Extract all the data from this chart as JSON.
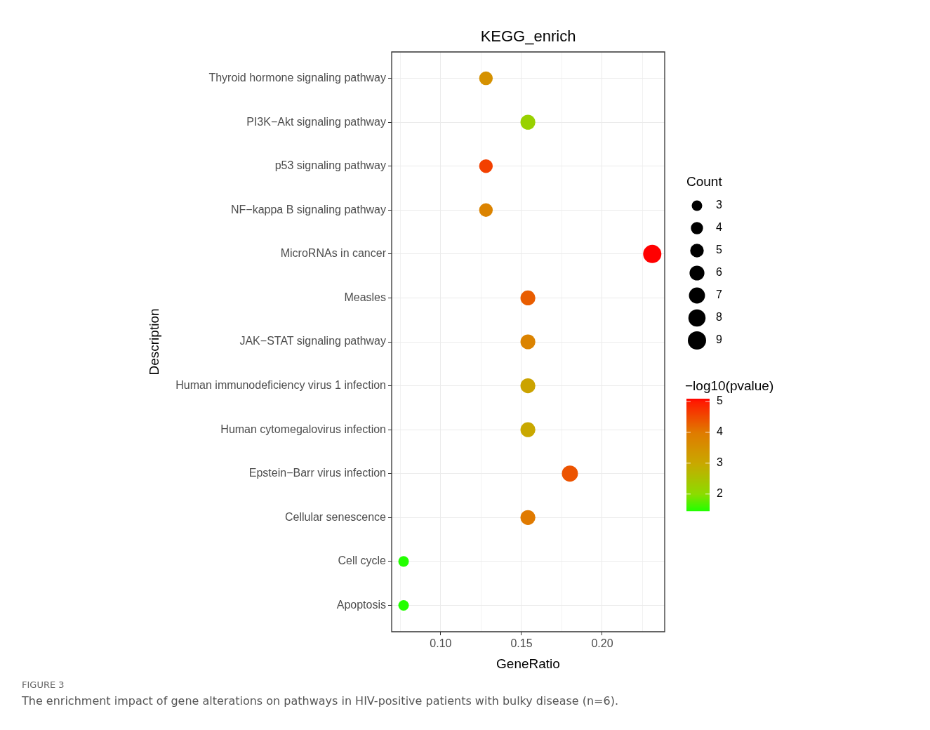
{
  "chart_data": {
    "type": "bubble",
    "title": "KEGG_enrich",
    "xlabel": "GeneRatio",
    "ylabel": "Description",
    "orientation": "horizontal",
    "categories": [
      "Thyroid hormone signaling pathway",
      "PI3K−Akt signaling pathway",
      "p53 signaling pathway",
      "NF−kappa B signaling pathway",
      "MicroRNAs in cancer",
      "Measles",
      "JAK−STAT signaling pathway",
      "Human immunodeficiency virus 1 infection",
      "Human cytomegalovirus infection",
      "Epstein−Barr virus infection",
      "Cellular senescence",
      "Cell cycle",
      "Apoptosis"
    ],
    "values": [
      0.128,
      0.154,
      0.128,
      0.128,
      0.231,
      0.154,
      0.154,
      0.154,
      0.154,
      0.18,
      0.154,
      0.077,
      0.077
    ],
    "sizes": [
      5,
      6,
      5,
      5,
      9,
      6,
      6,
      6,
      6,
      7,
      6,
      3,
      3
    ],
    "size_legend": [
      3,
      4,
      5,
      6,
      7,
      8,
      9
    ],
    "legend_title": "Count",
    "cvalues": [
      3.5,
      2.2,
      4.6,
      3.8,
      5.09,
      4.3,
      3.8,
      3.1,
      3.0,
      4.4,
      4.0,
      1.45,
      1.45
    ],
    "clabel": "−log10(pvalue)",
    "clim": [
      1.45,
      5.09
    ],
    "cticks": [
      2,
      3,
      4,
      5
    ],
    "xlim": [
      0.0696,
      0.2387
    ],
    "xticks": [
      {
        "value": 0.075,
        "label": null
      },
      {
        "value": 0.1,
        "label": "0.10"
      },
      {
        "value": 0.125,
        "label": null
      },
      {
        "value": 0.15,
        "label": "0.15"
      },
      {
        "value": 0.175,
        "label": null
      },
      {
        "value": 0.2,
        "label": "0.20"
      },
      {
        "value": 0.225,
        "label": null
      }
    ],
    "grid": true,
    "marker": "circle",
    "annotations": [
      "FIGURE 3",
      "The enrichment impact of gene alterations on pathways in HIV-positive patients with bulky disease (n=6)."
    ]
  }
}
